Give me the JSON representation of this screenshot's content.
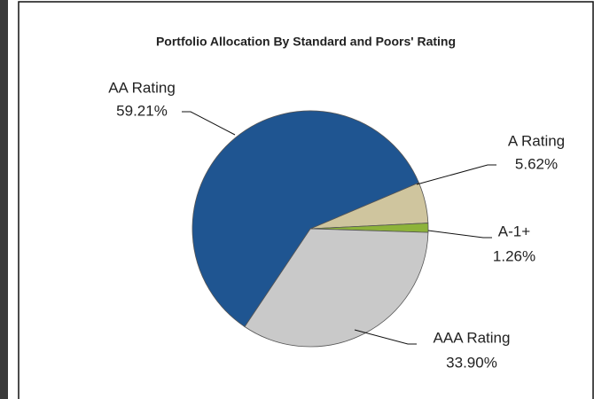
{
  "chart_data": {
    "type": "pie",
    "title": "Portfolio Allocation By  Standard and Poors' Rating",
    "categories": [
      "A Rating",
      "A-1+",
      "AAA Rating",
      "AA Rating"
    ],
    "values": [
      5.62,
      1.26,
      33.9,
      59.21
    ],
    "value_labels": [
      "5.62%",
      "1.26%",
      "33.90%",
      "59.21%"
    ],
    "colors": [
      "#cfc59e",
      "#8db33a",
      "#c9c9c9",
      "#1f5591"
    ]
  }
}
